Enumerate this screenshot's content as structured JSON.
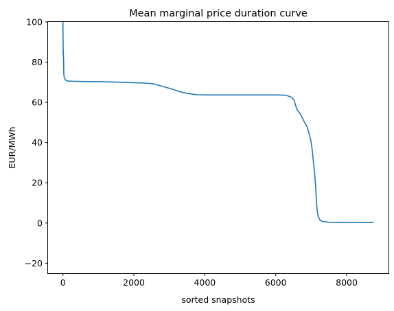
{
  "chart_data": {
    "type": "line",
    "title": "Mean marginal price duration curve",
    "xlabel": "sorted snapshots",
    "ylabel": "EUR/MWh",
    "xlim": [
      -420,
      9180
    ],
    "ylim": [
      -25,
      100
    ],
    "x_ticks": [
      0,
      2000,
      4000,
      6000,
      8000
    ],
    "x_tick_labels": [
      "0",
      "2000",
      "4000",
      "6000",
      "8000"
    ],
    "y_ticks": [
      -20,
      0,
      20,
      40,
      60,
      80,
      100
    ],
    "y_tick_labels": [
      "−20",
      "0",
      "20",
      "40",
      "60",
      "80",
      "100"
    ],
    "grid": false,
    "legend": "none",
    "series_color": "#1f77b4",
    "series": [
      {
        "x": [
          0,
          2,
          5,
          8,
          10,
          20,
          25,
          35,
          45,
          60,
          80,
          100,
          150,
          300,
          500,
          1000,
          1500,
          2000,
          2300,
          2550,
          2700,
          2900,
          3100,
          3300,
          3500,
          3700,
          3800,
          4000,
          4500,
          5000,
          5500,
          6000,
          6250,
          6350,
          6450,
          6520,
          6560,
          6600,
          6700,
          6800,
          6880,
          6950,
          7000,
          7030,
          7060,
          7100,
          7130,
          7150,
          7170,
          7200,
          7250,
          7300,
          7400,
          7500,
          7700,
          8000,
          8400,
          8760
        ],
        "y": [
          100,
          95,
          88,
          84,
          85,
          80,
          74,
          72.5,
          72,
          71.5,
          71,
          70.8,
          70.6,
          70.5,
          70.4,
          70.3,
          70.1,
          69.8,
          69.6,
          69.3,
          68.5,
          67.5,
          66.5,
          65.3,
          64.5,
          64,
          63.8,
          63.7,
          63.7,
          63.7,
          63.7,
          63.7,
          63.6,
          63.2,
          62.5,
          61,
          58.5,
          56.5,
          54,
          50.5,
          48,
          44,
          40,
          36,
          31,
          24,
          17,
          10,
          6,
          3,
          1.5,
          0.9,
          0.6,
          0.4,
          0.3,
          0.25,
          0.2,
          0.2
        ]
      }
    ]
  }
}
